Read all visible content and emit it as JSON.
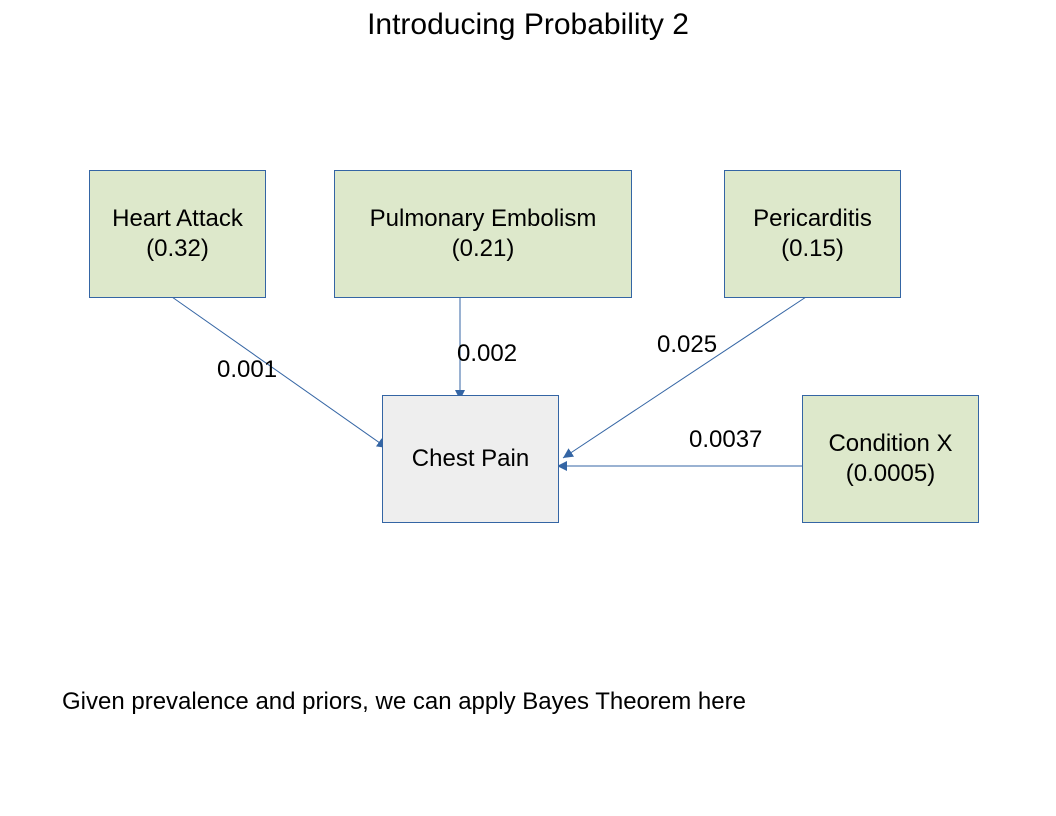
{
  "title": "Introducing Probability 2",
  "nodes": {
    "heart_attack": {
      "name": "Heart Attack",
      "prior": "(0.32)"
    },
    "pulmonary_embolism": {
      "name": "Pulmonary Embolism",
      "prior": "(0.21)"
    },
    "pericarditis": {
      "name": "Pericarditis",
      "prior": "(0.15)"
    },
    "chest_pain": {
      "name": "Chest Pain"
    },
    "condition_x": {
      "name": "Condition X",
      "prior": "(0.0005)"
    }
  },
  "edges": {
    "heart_attack": "0.001",
    "pulmonary_embolism": "0.002",
    "pericarditis": "0.025",
    "condition_x": "0.0037"
  },
  "caption": "Given prevalence and priors, we can apply Bayes Theorem here",
  "colors": {
    "cause_fill": "#dde8cb",
    "effect_fill": "#eeeeee",
    "line": "#3465a4"
  }
}
